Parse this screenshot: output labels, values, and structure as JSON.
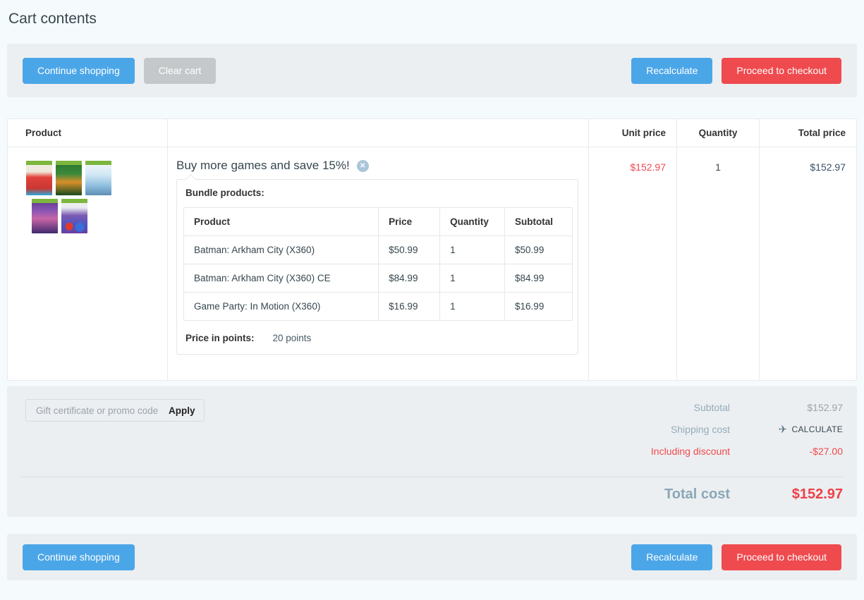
{
  "page": {
    "title": "Cart contents"
  },
  "colors": {
    "accent_blue": "#4ba6e8",
    "danger_red": "#ef4a4e",
    "panel_gray": "#eceff1",
    "muted_label": "#93abbc",
    "dark_text": "#37474f"
  },
  "icons": {
    "delete_glyph": "✕",
    "plane_glyph": "✈"
  },
  "toolbar_top": {
    "buttons": [
      {
        "label": "Continue shopping",
        "style": "blue"
      },
      {
        "label": "Clear cart",
        "style": "gray"
      },
      {
        "label": "Recalculate",
        "style": "blue"
      },
      {
        "label": "Proceed to checkout",
        "style": "red"
      }
    ]
  },
  "cart_table": {
    "headers": {
      "product": "Product",
      "unit_price": "Unit price",
      "quantity": "Quantity",
      "total_price": "Total price"
    },
    "item": {
      "name": "Buy more games and save 15%!",
      "unit_price": "$152.97",
      "quantity": "1",
      "total_price": "$152.97",
      "bundle": {
        "label": "Bundle products:",
        "headers": [
          "Product",
          "Price",
          "Quantity",
          "Subtotal"
        ],
        "rows": [
          [
            "Batman: Arkham City (X360)",
            "$50.99",
            "1",
            "$50.99"
          ],
          [
            "Batman: Arkham City (X360) CE",
            "$84.99",
            "1",
            "$84.99"
          ],
          [
            "Game Party: In Motion (X360)",
            "$16.99",
            "1",
            "$16.99"
          ]
        ],
        "points_label": "Price in points:",
        "points_value": "20 points"
      }
    }
  },
  "summary": {
    "promo_placeholder": "Gift certificate or promo code",
    "apply_label": "Apply",
    "rows": [
      {
        "label": "Subtotal",
        "value": "$152.97"
      },
      {
        "label": "Shipping cost",
        "value": "CALCULATE"
      },
      {
        "label": "Including discount",
        "value": "-$27.00"
      }
    ],
    "total_label": "Total cost",
    "total_value": "$152.97"
  },
  "toolbar_bottom": {
    "buttons": [
      {
        "label": "Continue shopping",
        "style": "blue"
      },
      {
        "label": "Recalculate",
        "style": "blue"
      },
      {
        "label": "Proceed to checkout",
        "style": "red"
      }
    ]
  }
}
